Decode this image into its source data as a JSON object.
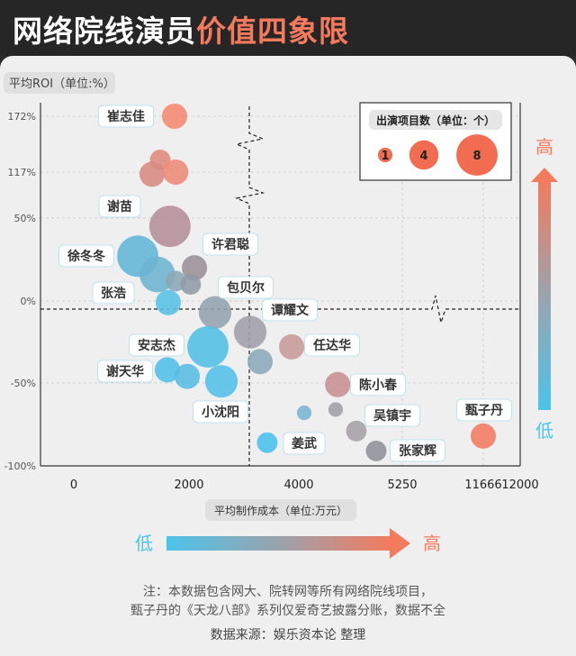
{
  "header": {
    "title_main": "网络院线演员",
    "title_accent": "价值四象限"
  },
  "colors": {
    "high": "#f47a5e",
    "low": "#4cc3ea",
    "header_bg": "#262626"
  },
  "chart_data": {
    "type": "scatter",
    "subtype": "bubble",
    "title": "网络院线演员价值四象限",
    "ylabel": "平均ROI（单位:%）",
    "xlabel": "平均制作成本（单位:万元）",
    "x_ticks": [
      0,
      2000,
      4000,
      5250,
      11666,
      12000
    ],
    "x_tick_labels": [
      "0",
      "2000",
      "4000",
      "5250",
      "11666",
      "12000"
    ],
    "y_ticks": [
      -100,
      -50,
      0,
      50,
      117,
      172
    ],
    "y_tick_labels": [
      "-100%",
      "-50%",
      "0%",
      "50%",
      "117%",
      "172%"
    ],
    "xlim": [
      -2000,
      12000
    ],
    "ylim": [
      -100,
      180
    ],
    "axis_breaks": "x axis broken between 5250 and 11666; y axis broken between 50% and 172%",
    "quadrant_lines": {
      "x": 3000,
      "y": -5
    },
    "grid": true,
    "legend": {
      "title": "出演项目数（单位：个）",
      "sizes": [
        1,
        4,
        8
      ],
      "size_labels": [
        "1",
        "4",
        "8"
      ],
      "placement": "top-right"
    },
    "color_scale": {
      "high_label": "高",
      "low_label": "低"
    },
    "x_color_scale": {
      "low_label": "低",
      "high_label": "高"
    },
    "points": [
      {
        "name": "崔志佳",
        "x": 1750,
        "y": 172,
        "count": 3,
        "color": "#f58a70"
      },
      {
        "name": "",
        "x": 1500,
        "y": 129,
        "count": 2,
        "color": "#e08a7c"
      },
      {
        "name": "",
        "x": 1360,
        "y": 114,
        "count": 3,
        "color": "#d78a82"
      },
      {
        "name": "",
        "x": 1770,
        "y": 117,
        "count": 3,
        "color": "#ee8a78"
      },
      {
        "name": "谢苗",
        "x": 1670,
        "y": 45,
        "count": 8,
        "color": "#b48e98"
      },
      {
        "name": "徐冬冬",
        "x": 1110,
        "y": 27,
        "count": 8,
        "color": "#62b6d8"
      },
      {
        "name": "",
        "x": 1450,
        "y": 16,
        "count": 6,
        "color": "#6db4d2"
      },
      {
        "name": "",
        "x": 1770,
        "y": 12,
        "count": 2,
        "color": "#8ca7b6"
      },
      {
        "name": "许君聪",
        "x": 2100,
        "y": 20,
        "count": 3,
        "color": "#9a8f99"
      },
      {
        "name": "",
        "x": 2030,
        "y": 10,
        "count": 2,
        "color": "#8f9aa6"
      },
      {
        "name": "张浩",
        "x": 1640,
        "y": -1,
        "count": 3,
        "color": "#55c0e6"
      },
      {
        "name": "包贝尔",
        "x": 2475,
        "y": -7,
        "count": 5,
        "color": "#93a3af"
      },
      {
        "name": "谭耀文",
        "x": 3115,
        "y": -19,
        "count": 5,
        "color": "#a09fab"
      },
      {
        "name": "安志杰",
        "x": 2345,
        "y": -28,
        "count": 8,
        "color": "#52bfe6"
      },
      {
        "name": "",
        "x": 3295,
        "y": -37,
        "count": 3,
        "color": "#8aa8b8"
      },
      {
        "name": "任达华",
        "x": 3870,
        "y": -28,
        "count": 3,
        "color": "#c89a9a"
      },
      {
        "name": "谢天华",
        "x": 1625,
        "y": -42,
        "count": 3,
        "color": "#50c0e8"
      },
      {
        "name": "",
        "x": 1970,
        "y": -46,
        "count": 3,
        "color": "#58bde4"
      },
      {
        "name": "小沈阳",
        "x": 2590,
        "y": -49,
        "count": 5,
        "color": "#52c0e8"
      },
      {
        "name": "陈小春",
        "x": 4470,
        "y": -51,
        "count": 3,
        "color": "#c89090"
      },
      {
        "name": "",
        "x": 4065,
        "y": -68,
        "count": 1,
        "color": "#7ab5d0"
      },
      {
        "name": "",
        "x": 4445,
        "y": -66,
        "count": 1,
        "color": "#a0a0a5"
      },
      {
        "name": "吴镇宇",
        "x": 4695,
        "y": -79,
        "count": 2,
        "color": "#a5a0a6"
      },
      {
        "name": "姜武",
        "x": 3425,
        "y": -86,
        "count": 2,
        "color": "#48c0ec"
      },
      {
        "name": "张家辉",
        "x": 4935,
        "y": -91,
        "count": 2,
        "color": "#909098"
      },
      {
        "name": "甄子丹",
        "x": 11666,
        "y": -82,
        "count": 3,
        "color": "#f47a62"
      }
    ]
  },
  "notes": {
    "line1": "注：本数据包含网大、院转网等所有网络院线项目，",
    "line2": "甄子丹的《天龙八部》系列仅爱奇艺披露分账，数据不全",
    "source": "数据来源：娱乐资本论 整理"
  }
}
